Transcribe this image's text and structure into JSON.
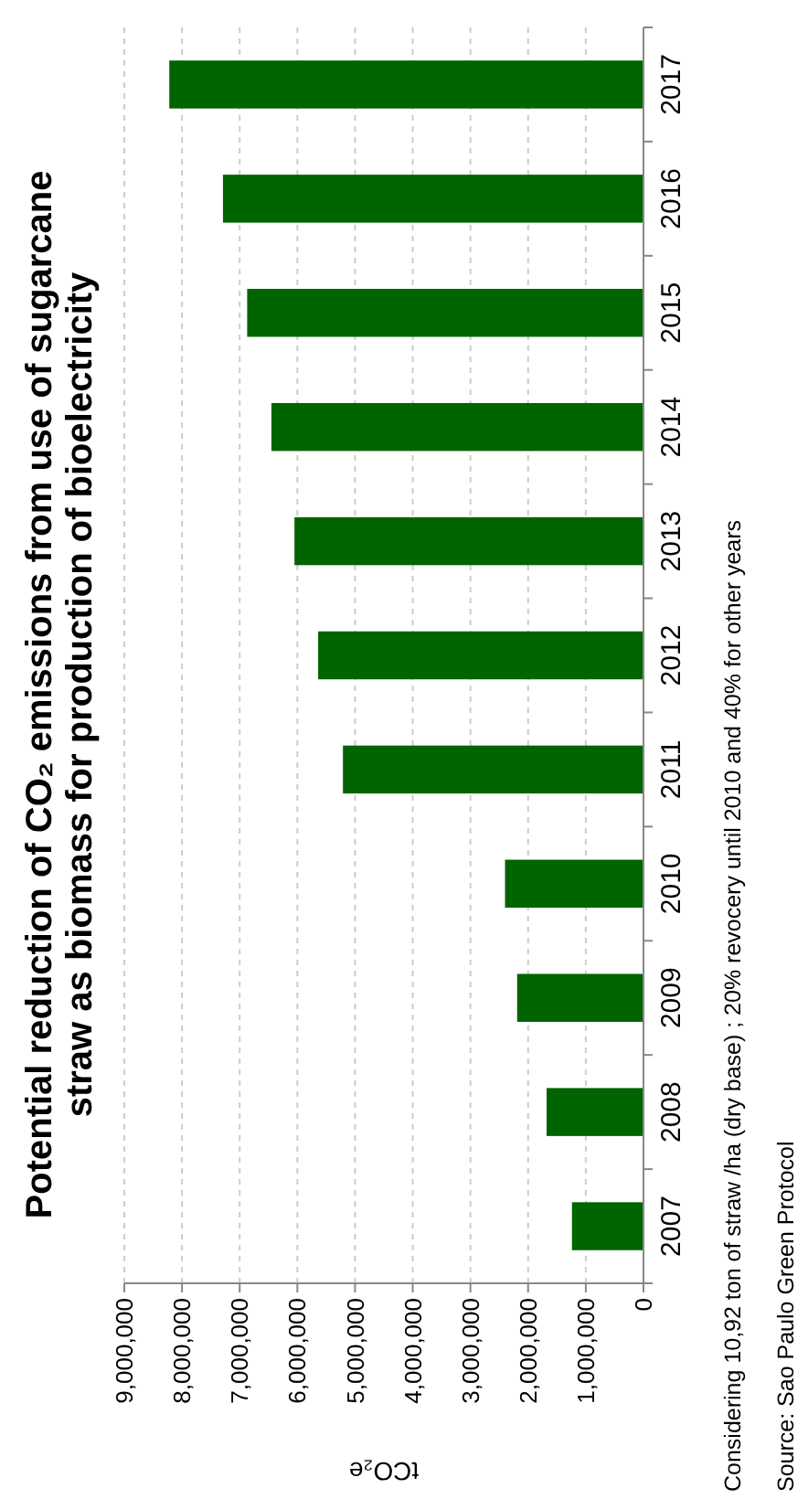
{
  "chart_data": {
    "type": "bar",
    "orientation": "horizontal",
    "title": "Potential reduction of CO₂ emissions from use of sugarcane straw as biomass for production of bioelectricity",
    "xlabel": "tCO₂e",
    "categories": [
      "2017",
      "2016",
      "2015",
      "2014",
      "2013",
      "2012",
      "2011",
      "2010",
      "2009",
      "2008",
      "2007"
    ],
    "values": [
      8220000,
      7290000,
      6870000,
      6450000,
      6050000,
      5640000,
      5210000,
      2400000,
      2190000,
      1680000,
      1240000
    ],
    "color": "#006400",
    "xlim": [
      9000000,
      0
    ],
    "xticks": [
      {
        "value": 9000000,
        "label": "9,000,000"
      },
      {
        "value": 8000000,
        "label": "8,000,000"
      },
      {
        "value": 7000000,
        "label": "7,000,000"
      },
      {
        "value": 6000000,
        "label": "6,000,000"
      },
      {
        "value": 5000000,
        "label": "5,000,000"
      },
      {
        "value": 4000000,
        "label": "4,000,000"
      },
      {
        "value": 3000000,
        "label": "3,000,000"
      },
      {
        "value": 2000000,
        "label": "2,000,000"
      },
      {
        "value": 1000000,
        "label": "1,000,000"
      },
      {
        "value": 0,
        "label": "0"
      }
    ],
    "grid": "x",
    "annotations": [
      "Considering 10,92 ton of straw /ha (dry base) ; 20% revocery until 2010 and 40% for other years",
      "Source: Sao Paulo Green Protocol"
    ]
  }
}
